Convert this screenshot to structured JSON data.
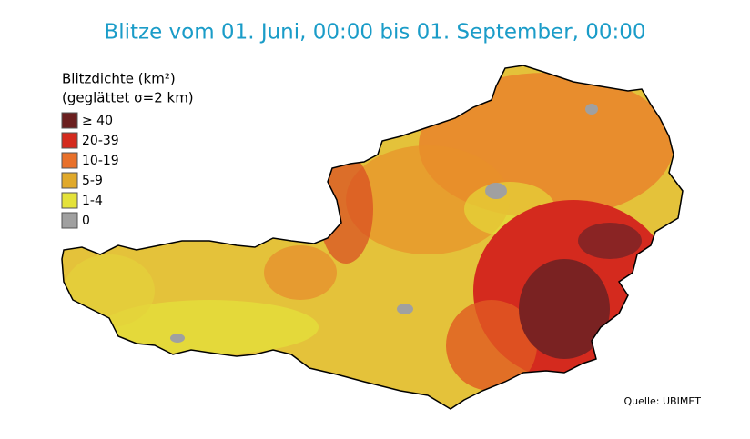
{
  "title": "Blitze vom 01. Juni, 00:00 bis 01. September, 00:00",
  "legend": {
    "title_line1": "Blitzdichte (km²)",
    "title_line2": "(geglättet σ=2 km)",
    "items": [
      {
        "label": "≥ 40",
        "color": "#6b1f1f"
      },
      {
        "label": "20-39",
        "color": "#d42a1e"
      },
      {
        "label": "10-19",
        "color": "#e8702a"
      },
      {
        "label": "5-9",
        "color": "#e0a92a"
      },
      {
        "label": "1-4",
        "color": "#e4e23a"
      },
      {
        "label": "0",
        "color": "#a0a0a0"
      }
    ]
  },
  "source": "Quelle: UBIMET"
}
